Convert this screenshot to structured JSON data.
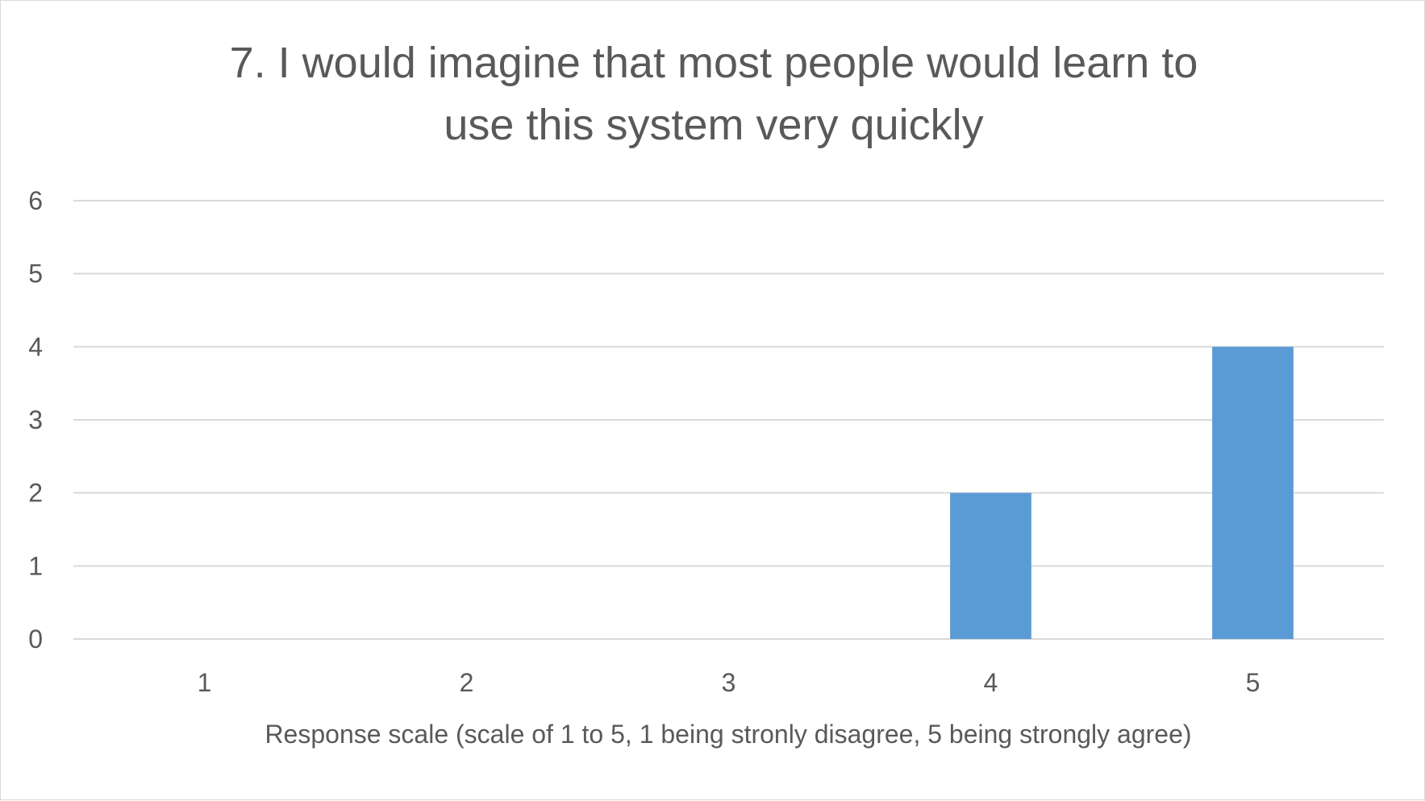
{
  "chart_data": {
    "type": "bar",
    "title_lines": [
      "7. I would imagine that most people would learn to",
      "use this system very quickly"
    ],
    "categories": [
      "1",
      "2",
      "3",
      "4",
      "5"
    ],
    "values": [
      0,
      0,
      0,
      2,
      4
    ],
    "xlabel": "Response scale (scale of 1 to 5, 1 being stronly disagree, 5 being strongly agree)",
    "ylabel": "",
    "ylim": [
      0,
      6
    ],
    "yticks": [
      "0",
      "1",
      "2",
      "3",
      "4",
      "5",
      "6"
    ],
    "grid": true,
    "legend": "none",
    "colors": {
      "bar": "#5b9bd5",
      "grid": "#d9d9d9",
      "text": "#595959"
    }
  }
}
